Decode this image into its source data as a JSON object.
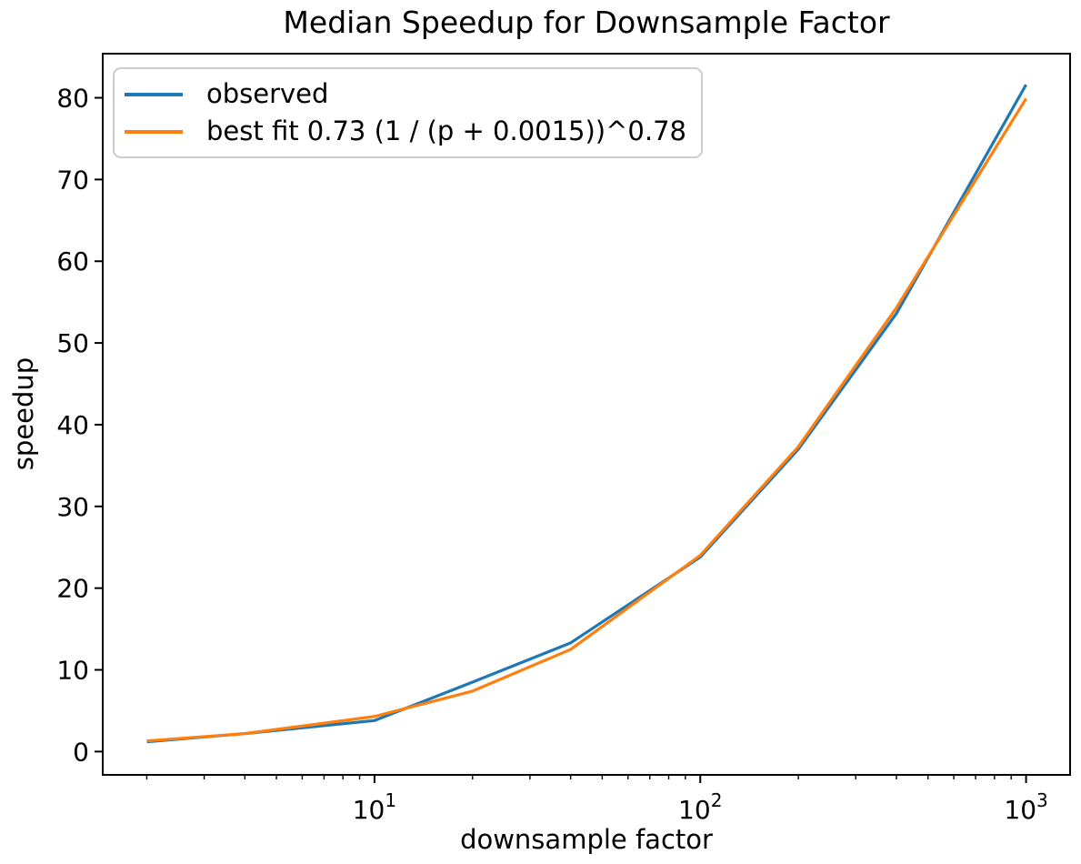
{
  "chart_data": {
    "type": "line",
    "title": "Median Speedup for Downsample Factor",
    "xlabel": "downsample factor",
    "ylabel": "speedup",
    "x_scale": "log",
    "y_scale": "linear",
    "x": [
      2,
      4,
      10,
      20,
      40,
      100,
      200,
      400,
      1000
    ],
    "series": [
      {
        "name": "observed",
        "color": "#1f77b4",
        "values": [
          1.2,
          2.2,
          3.8,
          8.5,
          13.3,
          23.8,
          37.0,
          53.6,
          81.6
        ]
      },
      {
        "name": "best fit 0.73 (1 / (p + 0.0015))^0.78",
        "color": "#ff7f0e",
        "values": [
          1.3,
          2.2,
          4.3,
          7.4,
          12.5,
          24.0,
          37.3,
          54.3,
          79.9
        ]
      }
    ],
    "xlim": [
      1.465,
      1365
    ],
    "ylim": [
      -2.85,
      85.4
    ],
    "y_ticks": [
      0,
      10,
      20,
      30,
      40,
      50,
      60,
      70,
      80
    ],
    "x_major_ticks": [
      10,
      100,
      1000
    ],
    "x_tick_labels": [
      "10^1",
      "10^2",
      "10^3"
    ],
    "x_minor_tick_subs": [
      2,
      3,
      4,
      5,
      6,
      7,
      8,
      9
    ],
    "legend_position": "upper left",
    "grid": false,
    "axis_color": "#000000",
    "background_color": "#ffffff"
  }
}
